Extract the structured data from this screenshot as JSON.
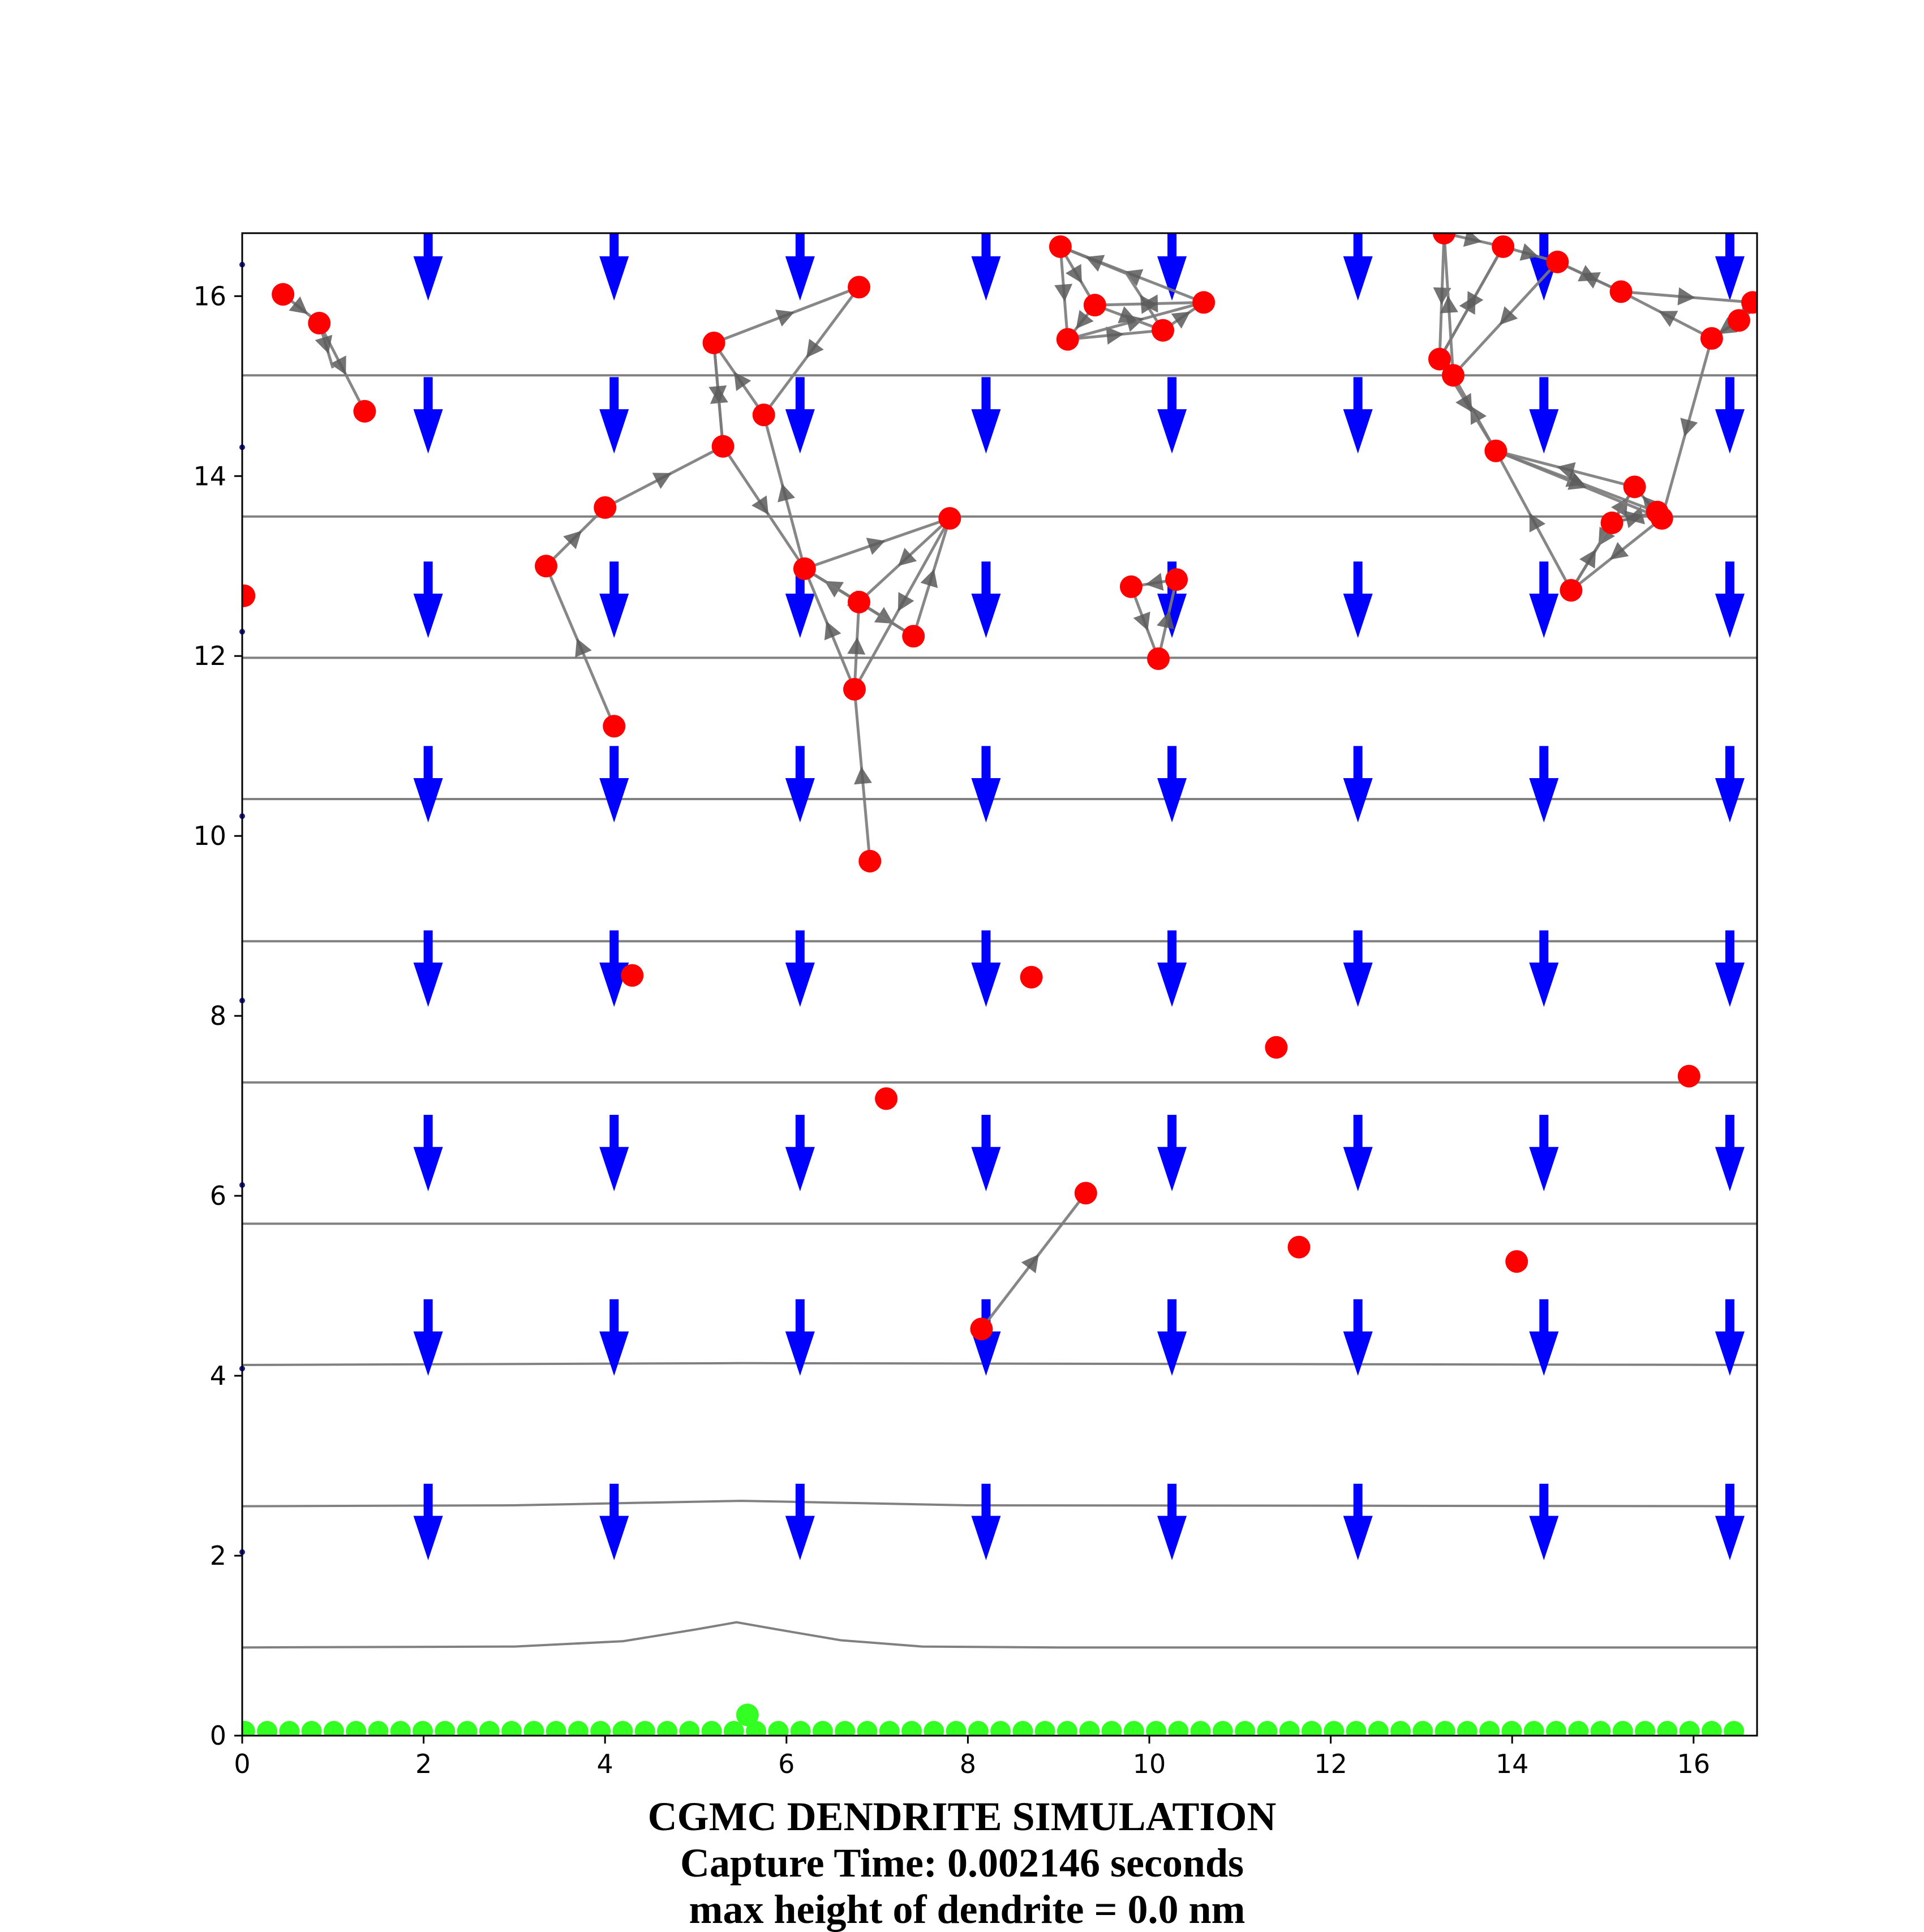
{
  "chart_data": {
    "type": "scatter",
    "title": "CGMC DENDRITE SIMULATION",
    "captions": [
      "Capture Time: 0.002146 seconds",
      " max height of dendrite = 0.0 nm"
    ],
    "xlim": [
      0,
      16.7
    ],
    "ylim": [
      0,
      16.7
    ],
    "xticks": [
      0,
      2,
      4,
      6,
      8,
      10,
      12,
      14,
      16
    ],
    "yticks": [
      0,
      2,
      4,
      6,
      8,
      10,
      12,
      14,
      16
    ],
    "grid": false,
    "colors": {
      "particles": "#ff0000",
      "dendrite": "#33ff22",
      "field_arrows": "#0000ff",
      "contours": "#808080",
      "paths": "#7a7a7a"
    },
    "field_arrows": {
      "x": [
        2.05,
        4.1,
        6.15,
        8.2,
        10.25,
        12.3,
        14.35,
        16.4
      ],
      "y_top": [
        16.8,
        15.1,
        13.05,
        11.0,
        8.95,
        6.9,
        4.85,
        2.8
      ],
      "length": 0.85,
      "direction": "down"
    },
    "contours": [
      {
        "level": 1,
        "points": [
          [
            0,
            0.98
          ],
          [
            3,
            0.99
          ],
          [
            4.2,
            1.05
          ],
          [
            5,
            1.18
          ],
          [
            5.45,
            1.26
          ],
          [
            5.9,
            1.18
          ],
          [
            6.6,
            1.06
          ],
          [
            7.5,
            0.99
          ],
          [
            9,
            0.98
          ],
          [
            16.7,
            0.98
          ]
        ]
      },
      {
        "level": 2,
        "points": [
          [
            0,
            2.55
          ],
          [
            3,
            2.56
          ],
          [
            4.5,
            2.59
          ],
          [
            5.5,
            2.61
          ],
          [
            6.5,
            2.59
          ],
          [
            8,
            2.56
          ],
          [
            16.7,
            2.55
          ]
        ]
      },
      {
        "level": 3,
        "points": [
          [
            0,
            4.12
          ],
          [
            5.5,
            4.14
          ],
          [
            16.7,
            4.12
          ]
        ]
      },
      {
        "level": 4,
        "points": [
          [
            0,
            5.69
          ],
          [
            16.7,
            5.69
          ]
        ]
      },
      {
        "level": 5,
        "points": [
          [
            0,
            7.26
          ],
          [
            16.7,
            7.26
          ]
        ]
      },
      {
        "level": 6,
        "points": [
          [
            0,
            8.83
          ],
          [
            16.7,
            8.83
          ]
        ]
      },
      {
        "level": 7,
        "points": [
          [
            0,
            10.41
          ],
          [
            16.7,
            10.41
          ]
        ]
      },
      {
        "level": 8,
        "points": [
          [
            0,
            11.98
          ],
          [
            16.7,
            11.98
          ]
        ]
      },
      {
        "level": 9,
        "points": [
          [
            0,
            13.55
          ],
          [
            16.7,
            13.55
          ]
        ]
      },
      {
        "level": 10,
        "points": [
          [
            0,
            15.12
          ],
          [
            16.7,
            15.12
          ]
        ]
      }
    ],
    "particles": [
      [
        0.45,
        16.02
      ],
      [
        0.85,
        15.7
      ],
      [
        1.35,
        14.72
      ],
      [
        0.02,
        12.67
      ],
      [
        3.35,
        13.0
      ],
      [
        4.1,
        11.22
      ],
      [
        4.0,
        13.65
      ],
      [
        5.3,
        14.33
      ],
      [
        5.2,
        15.48
      ],
      [
        5.75,
        14.68
      ],
      [
        6.8,
        16.1
      ],
      [
        6.2,
        12.97
      ],
      [
        6.8,
        12.6
      ],
      [
        6.75,
        11.63
      ],
      [
        6.92,
        9.72
      ],
      [
        7.4,
        12.22
      ],
      [
        7.8,
        13.53
      ],
      [
        9.02,
        16.55
      ],
      [
        9.4,
        15.9
      ],
      [
        9.1,
        15.52
      ],
      [
        10.15,
        15.62
      ],
      [
        10.6,
        15.93
      ],
      [
        9.8,
        12.77
      ],
      [
        10.3,
        12.85
      ],
      [
        10.1,
        11.97
      ],
      [
        13.25,
        16.7
      ],
      [
        13.9,
        16.55
      ],
      [
        14.5,
        16.38
      ],
      [
        15.2,
        16.05
      ],
      [
        16.2,
        15.53
      ],
      [
        16.5,
        15.73
      ],
      [
        16.65,
        15.93
      ],
      [
        13.2,
        15.3
      ],
      [
        13.35,
        15.12
      ],
      [
        13.82,
        14.28
      ],
      [
        15.35,
        13.88
      ],
      [
        15.6,
        13.6
      ],
      [
        15.65,
        13.53
      ],
      [
        15.1,
        13.48
      ],
      [
        14.65,
        12.73
      ],
      [
        4.3,
        8.45
      ],
      [
        8.7,
        8.43
      ],
      [
        7.1,
        7.08
      ],
      [
        11.4,
        7.65
      ],
      [
        15.95,
        7.33
      ],
      [
        9.3,
        6.03
      ],
      [
        8.15,
        4.52
      ],
      [
        11.65,
        5.43
      ],
      [
        14.05,
        5.27
      ]
    ],
    "dendrite": {
      "y": 0.05,
      "x_start": 0.03,
      "x_end": 16.65,
      "spacing": 0.245,
      "extra": [
        [
          5.57,
          0.23
        ]
      ]
    },
    "edge_markers_y": [
      16.35,
      14.32,
      12.27,
      10.22,
      8.17,
      6.12,
      4.08,
      2.04
    ],
    "paths": [
      [
        [
          0.45,
          16.02
        ],
        [
          0.85,
          15.7
        ],
        [
          1.35,
          14.72
        ]
      ],
      [
        [
          0.85,
          15.7
        ],
        [
          1.0,
          15.2
        ]
      ],
      [
        [
          4.1,
          11.22
        ],
        [
          3.35,
          13.0
        ],
        [
          4.0,
          13.65
        ],
        [
          5.3,
          14.33
        ],
        [
          5.2,
          15.48
        ],
        [
          6.8,
          16.1
        ],
        [
          5.75,
          14.68
        ],
        [
          5.2,
          15.48
        ],
        [
          5.3,
          14.33
        ],
        [
          6.2,
          12.97
        ],
        [
          5.75,
          14.68
        ]
      ],
      [
        [
          6.92,
          9.72
        ],
        [
          6.75,
          11.63
        ],
        [
          6.8,
          12.6
        ],
        [
          6.2,
          12.97
        ],
        [
          7.8,
          13.53
        ],
        [
          6.8,
          12.6
        ],
        [
          7.4,
          12.22
        ],
        [
          7.8,
          13.53
        ],
        [
          6.75,
          11.63
        ],
        [
          6.2,
          12.97
        ],
        [
          7.4,
          12.22
        ]
      ],
      [
        [
          9.02,
          16.55
        ],
        [
          9.4,
          15.9
        ],
        [
          9.1,
          15.52
        ],
        [
          10.15,
          15.62
        ],
        [
          10.6,
          15.93
        ],
        [
          9.02,
          16.55
        ],
        [
          9.1,
          15.52
        ],
        [
          10.6,
          15.93
        ],
        [
          9.4,
          15.9
        ],
        [
          10.15,
          15.62
        ],
        [
          9.75,
          16.25
        ],
        [
          9.02,
          16.55
        ]
      ],
      [
        [
          9.8,
          12.77
        ],
        [
          10.1,
          11.97
        ],
        [
          10.3,
          12.85
        ],
        [
          9.8,
          12.77
        ]
      ],
      [
        [
          13.25,
          16.7
        ],
        [
          13.2,
          15.3
        ],
        [
          13.9,
          16.55
        ],
        [
          14.5,
          16.38
        ],
        [
          15.2,
          16.05
        ],
        [
          16.65,
          15.93
        ],
        [
          16.5,
          15.73
        ],
        [
          16.2,
          15.53
        ],
        [
          15.2,
          16.05
        ],
        [
          14.5,
          16.38
        ],
        [
          13.35,
          15.12
        ],
        [
          13.25,
          16.7
        ],
        [
          13.9,
          16.55
        ],
        [
          13.2,
          15.3
        ]
      ],
      [
        [
          16.2,
          15.53
        ],
        [
          15.65,
          13.53
        ],
        [
          15.35,
          13.88
        ],
        [
          13.82,
          14.28
        ],
        [
          13.35,
          15.12
        ],
        [
          13.2,
          15.3
        ],
        [
          13.82,
          14.28
        ],
        [
          15.6,
          13.6
        ],
        [
          15.1,
          13.48
        ],
        [
          15.35,
          13.88
        ],
        [
          14.65,
          12.73
        ],
        [
          13.82,
          14.28
        ],
        [
          15.65,
          13.53
        ],
        [
          14.65,
          12.73
        ],
        [
          15.1,
          13.48
        ],
        [
          15.6,
          13.6
        ]
      ],
      [
        [
          8.15,
          4.52
        ],
        [
          9.3,
          6.03
        ]
      ]
    ]
  }
}
